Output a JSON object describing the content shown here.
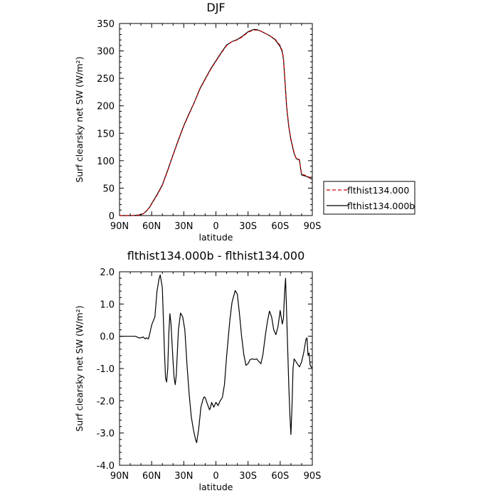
{
  "chart_data": [
    {
      "type": "line",
      "title": "DJF",
      "xlabel": "latitude",
      "ylabel": "Surf clearsky net SW (W/m²)",
      "xlim": [
        -90,
        90
      ],
      "ylim": [
        0,
        350
      ],
      "x_tick_values": [
        -90,
        -60,
        -30,
        0,
        30,
        60,
        90
      ],
      "x_tick_labels": [
        "90N",
        "60N",
        "30N",
        "0",
        "30S",
        "60S",
        "90S"
      ],
      "y_tick_values": [
        0,
        50,
        100,
        150,
        200,
        250,
        300,
        350
      ],
      "y_tick_labels": [
        "0",
        "50",
        "100",
        "150",
        "200",
        "250",
        "300",
        "350"
      ],
      "legend": "right",
      "series": [
        {
          "name": "flthist134.000",
          "color": "#cc0000",
          "dash": "dashed",
          "x": [
            -90,
            -78,
            -72,
            -68,
            -65,
            -62,
            -60,
            -55,
            -50,
            -45,
            -40,
            -35,
            -30,
            -25,
            -20,
            -15,
            -10,
            -5,
            0,
            5,
            10,
            15,
            20,
            25,
            30,
            35,
            38,
            42,
            45,
            50,
            55,
            60,
            62,
            63,
            64,
            65,
            66,
            68,
            70,
            73,
            75,
            78,
            80,
            85,
            90
          ],
          "y": [
            0,
            0,
            1,
            3,
            8,
            15,
            21,
            37,
            55,
            82,
            110,
            137,
            163,
            185,
            207,
            230,
            248,
            266,
            281,
            296,
            310,
            317,
            320,
            326,
            334,
            338,
            338,
            336,
            333,
            328,
            322,
            310,
            300,
            287,
            260,
            230,
            200,
            163,
            140,
            115,
            104,
            102,
            76,
            72,
            67
          ]
        },
        {
          "name": "flthist134.000b",
          "color": "#000000",
          "dash": "solid",
          "x": [
            -90,
            -78,
            -72,
            -68,
            -65,
            -62,
            -60,
            -55,
            -50,
            -45,
            -40,
            -35,
            -30,
            -25,
            -20,
            -15,
            -10,
            -5,
            0,
            5,
            10,
            15,
            20,
            25,
            30,
            35,
            38,
            42,
            45,
            50,
            55,
            60,
            62,
            63,
            64,
            65,
            66,
            68,
            70,
            73,
            75,
            78,
            80,
            85,
            90
          ],
          "y": [
            0,
            0,
            1,
            3,
            8,
            15,
            22,
            38,
            56,
            83,
            111,
            138,
            164,
            186,
            207,
            231,
            249,
            267,
            282,
            297,
            311,
            317,
            321,
            327,
            335,
            339,
            339,
            336,
            333,
            328,
            321,
            308,
            298,
            285,
            258,
            228,
            198,
            162,
            138,
            113,
            104,
            101,
            74,
            71,
            66
          ]
        }
      ]
    },
    {
      "type": "line",
      "title": "flthist134.000b - flthist134.000",
      "xlabel": "latitude",
      "ylabel": "Surf clearsky net SW (W/m²)",
      "xlim": [
        -90,
        90
      ],
      "ylim": [
        -4,
        2
      ],
      "x_tick_values": [
        -90,
        -60,
        -30,
        0,
        30,
        60,
        90
      ],
      "x_tick_labels": [
        "90N",
        "60N",
        "30N",
        "0",
        "30S",
        "60S",
        "90S"
      ],
      "y_tick_values": [
        -4,
        -3,
        -2,
        -1,
        0,
        1,
        2
      ],
      "y_tick_labels": [
        "-4.0",
        "-3.0",
        "-2.0",
        "-1.0",
        "0.0",
        "1.0",
        "2.0"
      ],
      "series": [
        {
          "color": "#000000",
          "x": [
            -90,
            -80,
            -75,
            -72,
            -70,
            -68,
            -66,
            -65,
            -63,
            -62,
            -60,
            -57,
            -55,
            -53,
            -52,
            -50,
            -49,
            -48,
            -47,
            -46,
            -45,
            -44,
            -43,
            -42,
            -40,
            -39,
            -38,
            -37,
            -35,
            -33,
            -31,
            -29,
            -27,
            -25,
            -23,
            -21,
            -19,
            -18,
            -16,
            -14,
            -12,
            -11,
            -10,
            -8,
            -6,
            -5,
            -4,
            -2,
            0,
            2,
            4,
            6,
            8,
            10,
            13,
            15,
            18,
            20,
            22,
            24,
            26,
            28,
            30,
            32,
            34,
            36,
            38,
            40,
            42,
            44,
            46,
            48,
            50,
            52,
            54,
            56,
            58,
            60,
            62,
            63,
            64,
            65,
            66,
            68,
            69,
            70,
            71,
            72,
            73,
            75,
            78,
            80,
            82,
            84,
            85,
            86,
            87,
            88,
            90
          ],
          "y": [
            0,
            0,
            0,
            -0.05,
            -0.05,
            -0.02,
            -0.08,
            -0.05,
            -0.08,
            0.05,
            0.35,
            0.6,
            1.4,
            1.8,
            1.9,
            1.5,
            0.5,
            -0.5,
            -1.3,
            -1.42,
            -1.0,
            0.1,
            0.7,
            0.4,
            -0.8,
            -1.3,
            -1.5,
            -1.2,
            0.2,
            0.72,
            0.6,
            0.2,
            -0.9,
            -1.8,
            -2.5,
            -2.9,
            -3.2,
            -3.3,
            -2.85,
            -2.2,
            -1.95,
            -1.88,
            -1.9,
            -2.1,
            -2.28,
            -2.2,
            -2.05,
            -2.2,
            -2.05,
            -2.15,
            -2.0,
            -1.9,
            -1.5,
            -0.6,
            0.5,
            1.05,
            1.42,
            1.3,
            0.7,
            0.0,
            -0.55,
            -0.9,
            -0.85,
            -0.72,
            -0.7,
            -0.72,
            -0.7,
            -0.78,
            -0.85,
            -0.55,
            0.0,
            0.45,
            0.78,
            0.6,
            0.2,
            0.05,
            0.3,
            0.8,
            0.38,
            0.55,
            1.3,
            1.8,
            0.7,
            -1.5,
            -2.4,
            -3.05,
            -2.2,
            -1.0,
            -0.7,
            -0.8,
            -0.95,
            -0.8,
            -0.5,
            -0.1,
            -0.05,
            -0.6,
            -0.52,
            -0.9,
            -1.0
          ]
        }
      ]
    }
  ]
}
